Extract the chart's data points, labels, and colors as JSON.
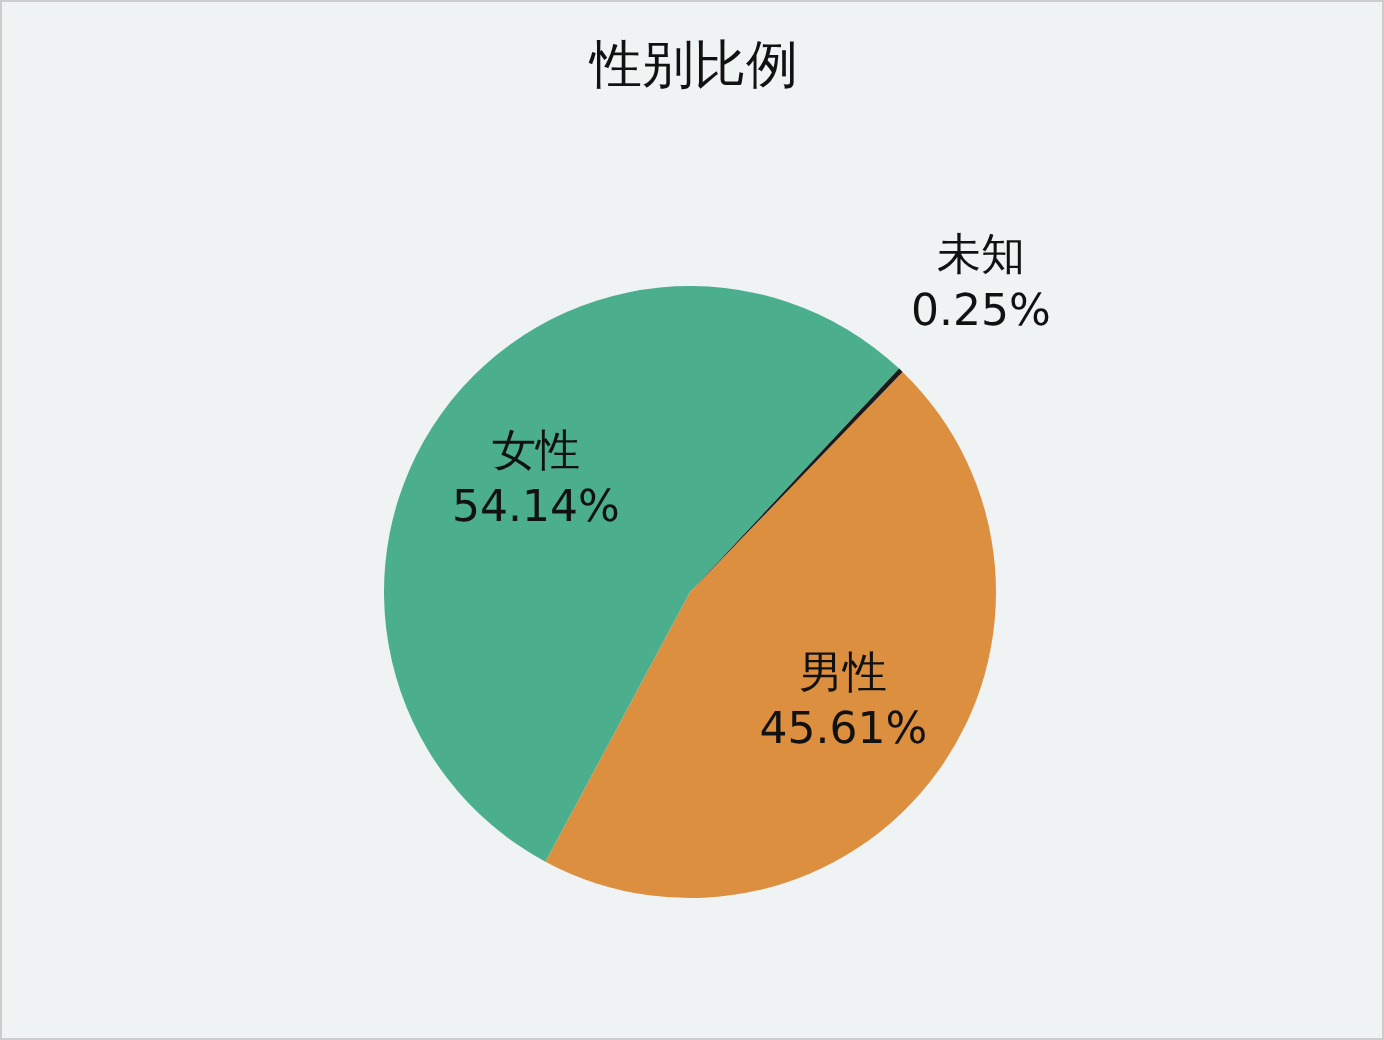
{
  "chart_data": {
    "type": "pie",
    "title": "性别比例",
    "categories": [
      "男性",
      "女性",
      "未知"
    ],
    "values": [
      45.61,
      54.14,
      0.25
    ],
    "value_labels": [
      "45.61%",
      "54.14%",
      "0.25%"
    ],
    "colors": [
      "#dc8f3f",
      "#4baf8e",
      "#1a1a1a"
    ],
    "legend": false
  }
}
